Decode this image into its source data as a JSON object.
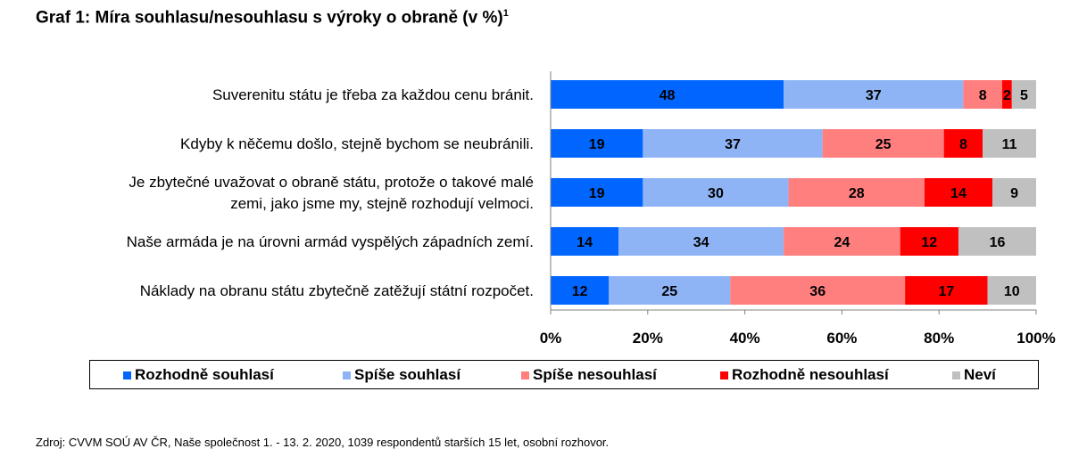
{
  "title": {
    "text": "Graf 1: Míra souhlasu/nesouhlasu s výroky o obraně (v %)",
    "footnote_mark": "1"
  },
  "source": "Zdroj: CVVM SOÚ AV ČR, Naše společnost 1. - 13. 2. 2020, 1039 respondentů starších 15 let, osobní rozhovor.",
  "chart_data": {
    "type": "bar",
    "orientation": "horizontal",
    "stacked": "percent",
    "categories": [
      [
        "Suverenitu státu je třeba za každou cenu bránit."
      ],
      [
        "Kdyby k něčemu došlo, stejně bychom se neubránili."
      ],
      [
        "Je zbytečné uvažovat o obraně státu, protože o takové malé",
        "zemi, jako jsme my, stejně rozhodují velmoci."
      ],
      [
        "Naše armáda je na úrovni armád vyspělých západních zemí."
      ],
      [
        "Náklady na obranu státu zbytečně zatěžují státní rozpočet."
      ]
    ],
    "series": [
      {
        "name": "Rozhodně souhlasí",
        "color": "#0066ff",
        "values": [
          48,
          19,
          19,
          14,
          12
        ]
      },
      {
        "name": "Spíše souhlasí",
        "color": "#8fb4f5",
        "values": [
          37,
          37,
          30,
          34,
          25
        ]
      },
      {
        "name": "Spíše nesouhlasí",
        "color": "#ff7f7f",
        "values": [
          8,
          25,
          28,
          24,
          36
        ]
      },
      {
        "name": "Rozhodně nesouhlasí",
        "color": "#ff0000",
        "values": [
          2,
          8,
          14,
          12,
          17
        ]
      },
      {
        "name": "Neví",
        "color": "#c0c0c0",
        "values": [
          5,
          11,
          9,
          16,
          10
        ]
      }
    ],
    "xlim": [
      0,
      100
    ],
    "x_ticks": [
      "0%",
      "20%",
      "40%",
      "60%",
      "80%",
      "100%"
    ],
    "grid": false,
    "legend_position": "bottom"
  }
}
